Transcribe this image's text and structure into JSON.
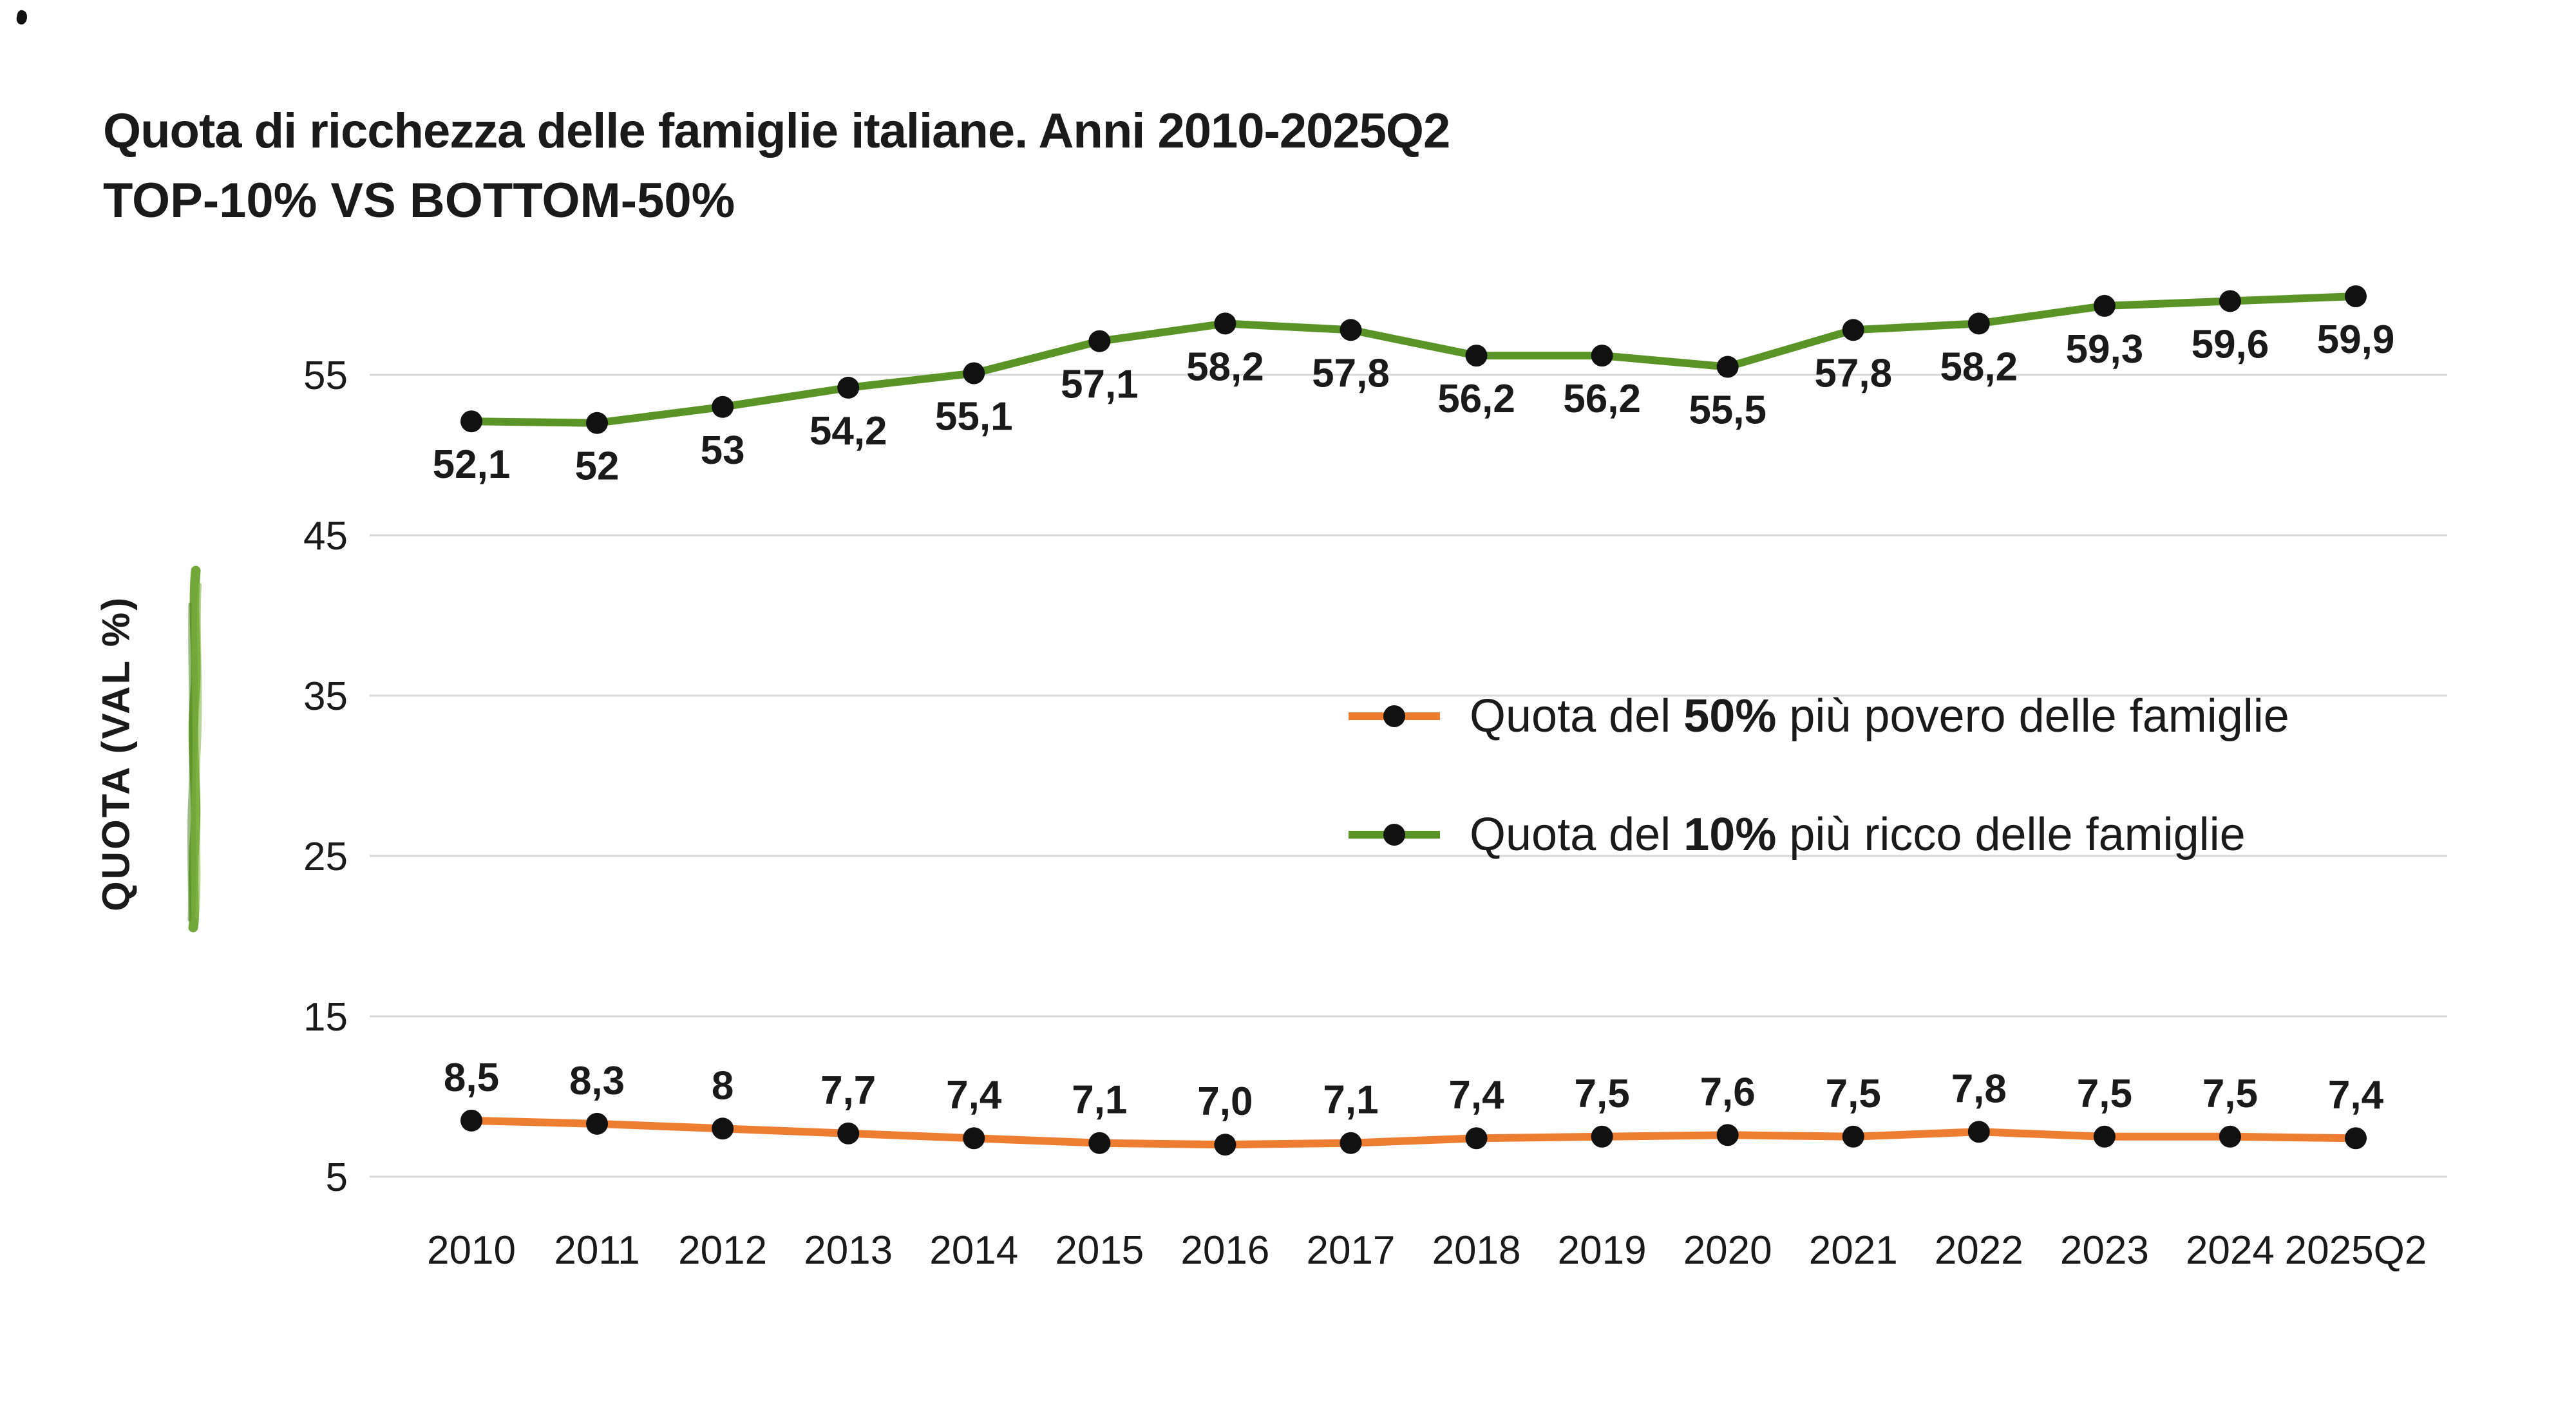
{
  "title": "Quota di ricchezza delle famiglie italiane. Anni 2010-2025Q2",
  "subtitle": "TOP-10% VS BOTTOM-50%",
  "y_axis_title": "QUOTA (VAL %)",
  "colors": {
    "top10": "#5a9427",
    "bottom50": "#ed7d31",
    "marker": "#111111",
    "grid": "#d8d8d8",
    "text": "#1a1a1a",
    "brush": "#6aa32e"
  },
  "legend": [
    {
      "prefix": "Quota del ",
      "bold": "50%",
      "suffix": " più povero delle famiglie",
      "series": "bottom50"
    },
    {
      "prefix": "Quota del ",
      "bold": "10%",
      "suffix": " più ricco delle famiglie",
      "series": "top10"
    }
  ],
  "chart_data": {
    "type": "line",
    "title": "Quota di ricchezza delle famiglie italiane. Anni 2010-2025Q2",
    "subtitle": "TOP-10% VS BOTTOM-50%",
    "ylabel": "QUOTA (VAL %)",
    "xlabel": "",
    "grid": "horizontal",
    "legend_position": "center-right",
    "y_ticks": [
      5,
      15,
      25,
      35,
      45,
      55
    ],
    "ylim": [
      5,
      62
    ],
    "categories": [
      "2010",
      "2011",
      "2012",
      "2013",
      "2014",
      "2015",
      "2016",
      "2017",
      "2018",
      "2019",
      "2020",
      "2021",
      "2022",
      "2023",
      "2024",
      "2025Q2"
    ],
    "series": [
      {
        "name": "Quota del 10% più ricco delle famiglie",
        "key": "top10",
        "color": "#5a9427",
        "label_position": "below",
        "values": [
          52.1,
          52,
          53,
          54.2,
          55.1,
          57.1,
          58.2,
          57.8,
          56.2,
          56.2,
          55.5,
          57.8,
          58.2,
          59.3,
          59.6,
          59.9
        ],
        "labels": [
          "52,1",
          "52",
          "53",
          "54,2",
          "55,1",
          "57,1",
          "58,2",
          "57,8",
          "56,2",
          "56,2",
          "55,5",
          "57,8",
          "58,2",
          "59,3",
          "59,6",
          "59,9"
        ]
      },
      {
        "name": "Quota del 50% più povero delle famiglie",
        "key": "bottom50",
        "color": "#ed7d31",
        "label_position": "above",
        "values": [
          8.5,
          8.3,
          8,
          7.7,
          7.4,
          7.1,
          7.0,
          7.1,
          7.4,
          7.5,
          7.6,
          7.5,
          7.8,
          7.5,
          7.5,
          7.4
        ],
        "labels": [
          "8,5",
          "8,3",
          "8",
          "7,7",
          "7,4",
          "7,1",
          "7,0",
          "7,1",
          "7,4",
          "7,5",
          "7,6",
          "7,5",
          "7,8",
          "7,5",
          "7,5",
          "7,4"
        ]
      }
    ]
  }
}
